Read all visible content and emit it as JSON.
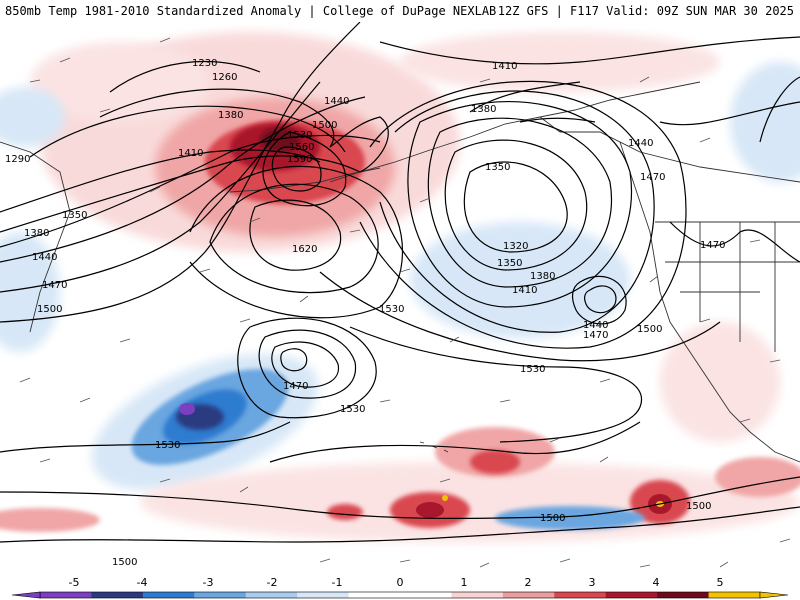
{
  "header": {
    "title": "850mb Temp 1981-2010 Standardized Anomaly | College of DuPage NEXLAB",
    "run_info": "12Z GFS | F117 Valid: 09Z SUN MAR 30 2025"
  },
  "colorbar": {
    "ticks": [
      "-5",
      "-4",
      "-3",
      "-2",
      "-1",
      "0",
      "1",
      "2",
      "3",
      "4",
      "5"
    ],
    "colors": [
      "#7b3fbf",
      "#2b3a80",
      "#2f7bd0",
      "#6aa6e0",
      "#a9cbee",
      "#d7e7f7",
      "#ffffff",
      "#ffffff",
      "#f7d3d3",
      "#eb9c9c",
      "#d9474f",
      "#a8172b",
      "#6e0a1a",
      "#f2c200"
    ]
  },
  "contours": {
    "labels": [
      "1230",
      "1260",
      "1290",
      "1350",
      "1380",
      "1410",
      "1440",
      "1470",
      "1500",
      "1530",
      "1560",
      "1590",
      "1620",
      "1320",
      "1350",
      "1380",
      "1410",
      "1440",
      "1470",
      "1500",
      "1530",
      "1410",
      "1380",
      "1440",
      "1470",
      "1470",
      "1500",
      "1530",
      "1530",
      "1530",
      "1500",
      "1500",
      "1470",
      "1350",
      "1380",
      "1440",
      "1500"
    ]
  }
}
